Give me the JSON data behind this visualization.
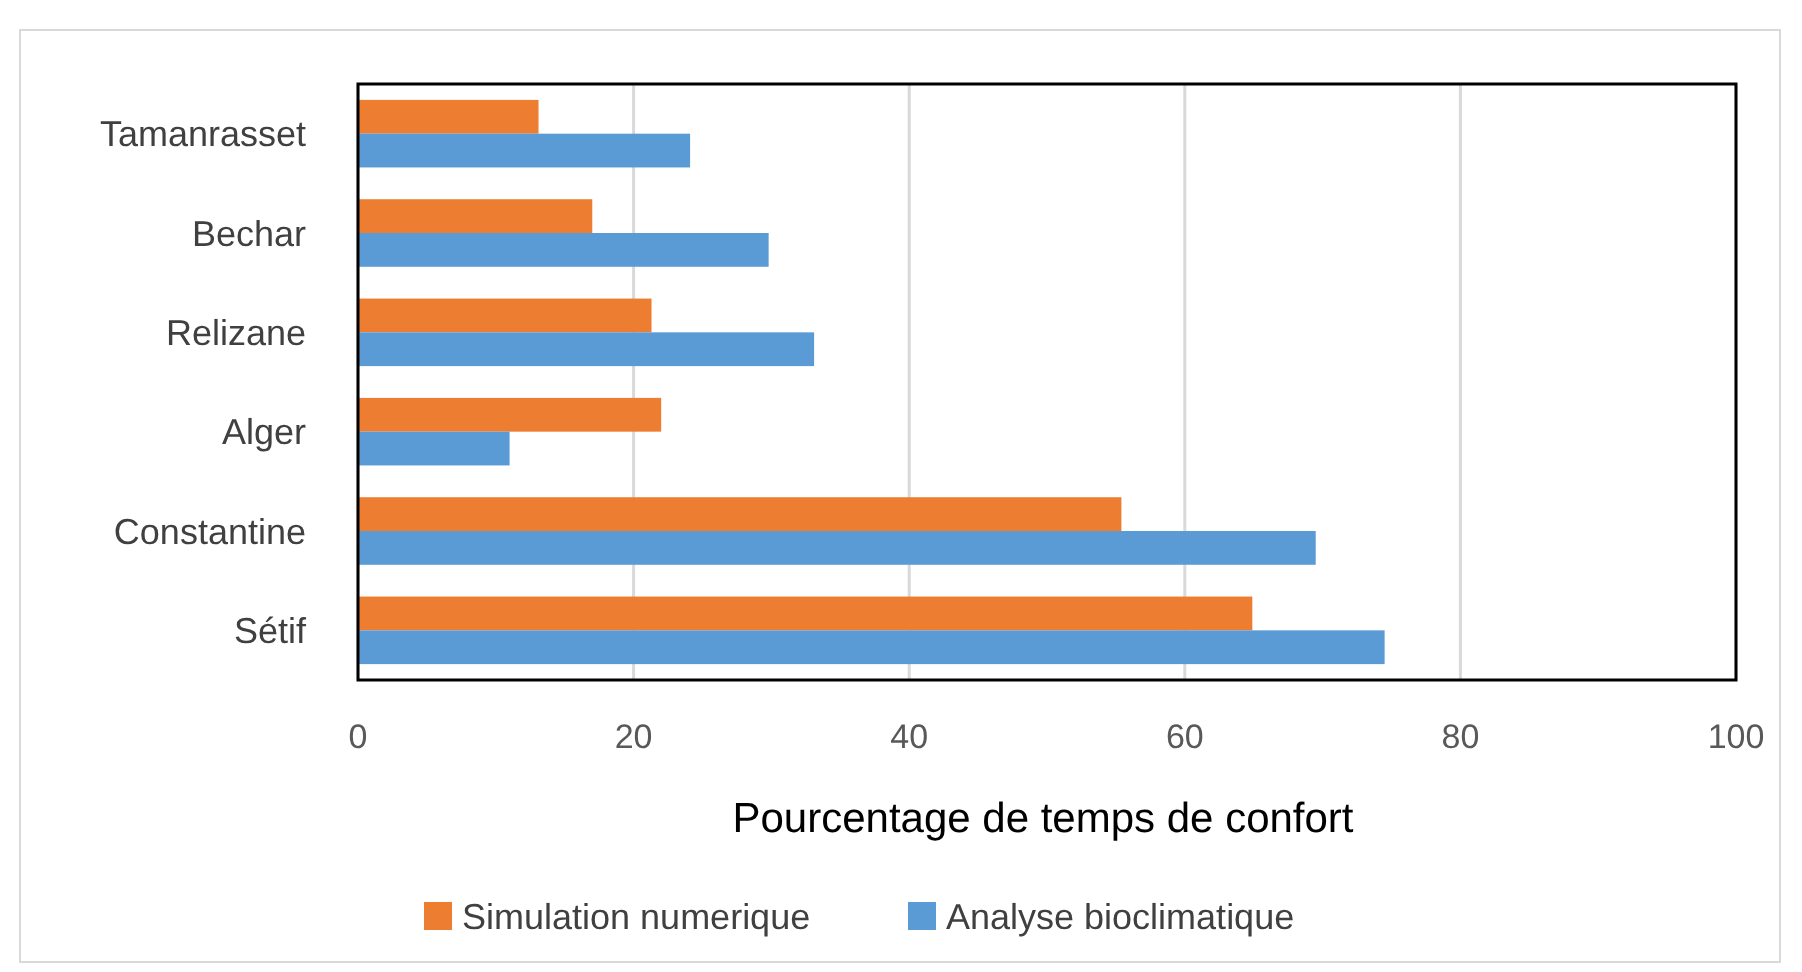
{
  "chart_data": {
    "type": "bar",
    "orientation": "horizontal",
    "xlabel": "Pourcentage de temps de confort",
    "categories": [
      "Tamanrasset",
      "Bechar",
      "Relizane",
      "Alger",
      "Constantine",
      "Sétif"
    ],
    "series": [
      {
        "name": "Simulation numerique",
        "color": "#ed7d31",
        "values": [
          13.1,
          17,
          21.3,
          22,
          55.4,
          64.9
        ]
      },
      {
        "name": "Analyse bioclimatique",
        "color": "#5b9bd5",
        "values": [
          24.1,
          29.8,
          33.1,
          11,
          69.5,
          74.5
        ]
      }
    ],
    "xlim": [
      0,
      100
    ],
    "xticks": [
      0,
      20,
      40,
      60,
      80,
      100
    ],
    "grid": "x",
    "legend": "bottom"
  }
}
